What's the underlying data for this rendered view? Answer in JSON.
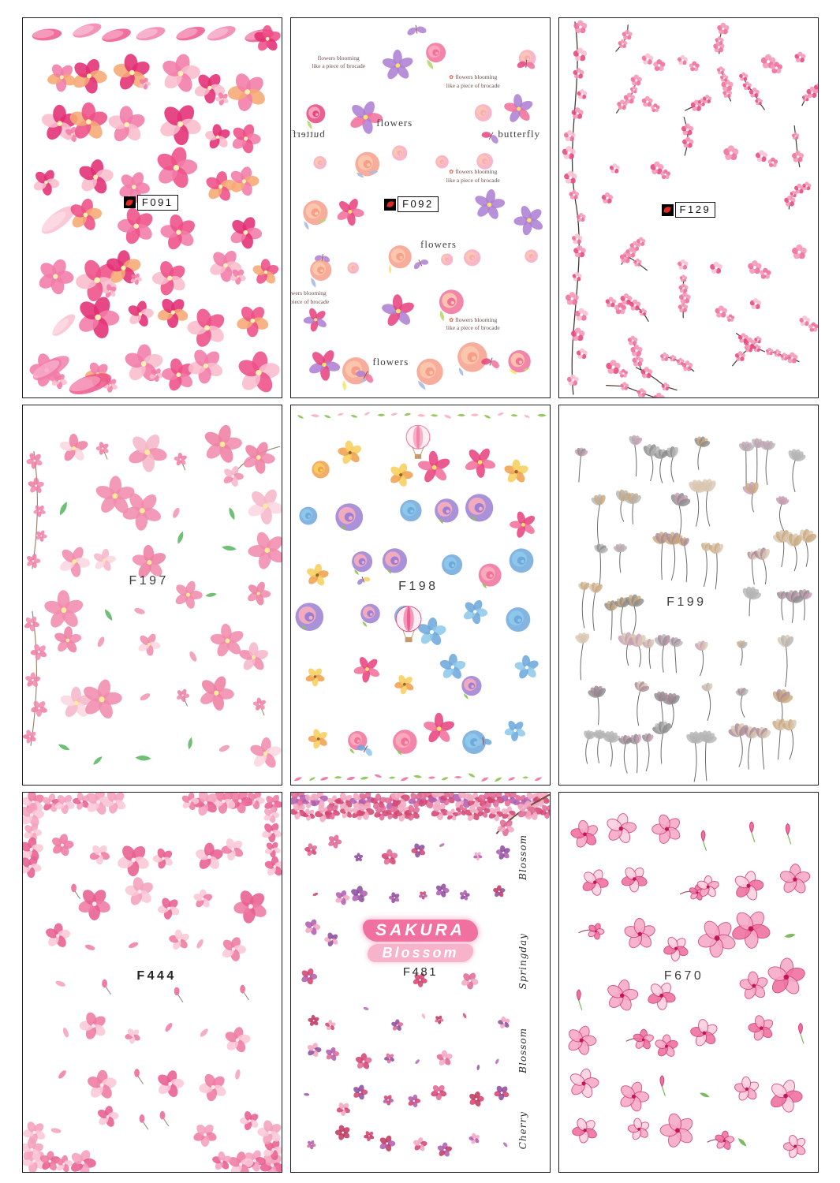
{
  "page": {
    "background": "#ffffff",
    "cell_border_color": "#1e1e1e"
  },
  "brand_logo": {
    "name": "red-petal-logo",
    "color": "#d92b1f",
    "bg": "#000000"
  },
  "sheets": [
    {
      "code": "F091",
      "label_style": "boxed",
      "motif": "watercolor-blossom",
      "colors": [
        "#ee4f87",
        "#f27ba8",
        "#f9bccd",
        "#e22e74",
        "#f6a973"
      ],
      "center_color": "#fdf0b0"
    },
    {
      "code": "F092",
      "label_style": "boxed",
      "motif": "rose-peony",
      "colors": [
        "#f2709b",
        "#f8a8bf",
        "#f79e8a",
        "#fbc9ae",
        "#ae7fd4",
        "#e8447f"
      ],
      "accents": {
        "leaf": "#b9d76f",
        "yellow": "#f6e470",
        "blue": "#a9bce2"
      },
      "annotations": [
        {
          "text": "flowers blooming\nlike a piece of brocade"
        },
        {
          "text": "flowers blooming\nlike a piece of brocade"
        },
        {
          "text": "flowers"
        },
        {
          "text": "butterfly"
        },
        {
          "text": "butterfly"
        },
        {
          "text": "flowers blooming\nlike a piece of brocade"
        },
        {
          "text": "flowers"
        },
        {
          "text": "flowers blooming\nlike a piece of brocade"
        },
        {
          "text": "flowers blooming\nlike a piece of brocade"
        },
        {
          "text": "flowers"
        }
      ]
    },
    {
      "code": "F129",
      "label_style": "boxed",
      "motif": "plum-branch",
      "colors": [
        "#ef6f9a",
        "#f59ab7",
        "#e84a80",
        "#f7c2d2"
      ],
      "branch_color": "#473a30"
    },
    {
      "code": "F197",
      "label_style": "plain",
      "motif": "soft-magnolia",
      "colors": [
        "#f6b7ca",
        "#f08cad",
        "#fad6e0",
        "#ef7fa4"
      ],
      "leaf_color": "#5fb868",
      "branch_color": "#9a7b62"
    },
    {
      "code": "F198",
      "label_style": "plain",
      "motif": "mixed-colorful",
      "colors": [
        "#f2709b",
        "#f8aebc",
        "#6fa8dc",
        "#8ec9ea",
        "#f7cf5f",
        "#f0a04e",
        "#9b7fd4",
        "#e8447f"
      ],
      "leaf_color": "#8cc152"
    },
    {
      "code": "F199",
      "label_style": "plain",
      "motif": "muted-stem",
      "colors": [
        "#c9a87c",
        "#b4b4b4",
        "#a98896",
        "#8a8a8a",
        "#c59db1",
        "#d8c7b2"
      ],
      "stem_color": "#6a6a6a"
    },
    {
      "code": "F444",
      "label_style": "plain-bold",
      "motif": "sakura-scatter",
      "colors": [
        "#f4a0bc",
        "#ee7ba3",
        "#f9c8d6",
        "#e85f90"
      ],
      "stem_color": "#9a8070"
    },
    {
      "code": "F481",
      "label_style": "plain",
      "motif": "tiny-blossom",
      "colors": [
        "#e06a96",
        "#b05fb0",
        "#d44571",
        "#f2a9c0",
        "#8e4f9e",
        "#c23b62"
      ],
      "title": {
        "line1": "SAKURA",
        "line2": "Blossom"
      },
      "title_colors": {
        "line1_bg": "#f0719f",
        "line2_bg": "#f6b3c9",
        "text": "#ffffff"
      },
      "side_words": [
        "Blossom",
        "Springday",
        "Blossom",
        "Cherry"
      ]
    },
    {
      "code": "F670",
      "label_style": "plain",
      "motif": "outline-magnolia",
      "colors": [
        "#f6a9c6",
        "#ef6f9f",
        "#fbd0de",
        "#e04583"
      ],
      "outline_color": "#cc3a74",
      "leaf_color": "#6fb24f"
    }
  ]
}
